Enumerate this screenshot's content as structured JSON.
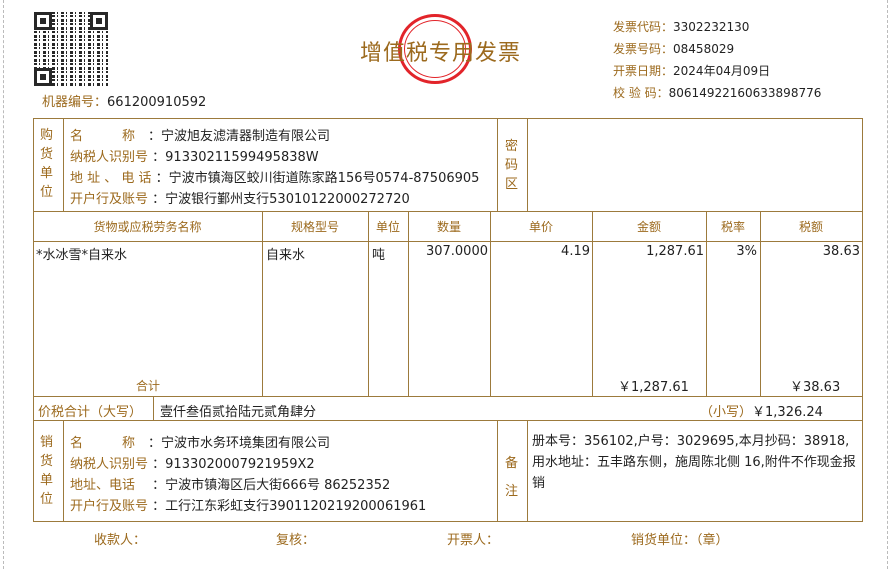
{
  "header": {
    "title": "增值税专用发票",
    "machine_no_label": "机器编号",
    "machine_no": "661200910592",
    "invoice_code_label": "发票代码",
    "invoice_code": "3302232130",
    "invoice_no_label": "发票号码",
    "invoice_no": "08458029",
    "date_label": "开票日期",
    "date": "2024年04月09日",
    "check_code_label": "校 验 码",
    "check_code": "80614922160633898776",
    "seal_color": "#e2242a",
    "accent": "#9c6a1e"
  },
  "buyer": {
    "side_label": "购货单位",
    "name_label": "名　　　称",
    "name": "宁波旭友滤清器制造有限公司",
    "tax_id_label": "纳税人识别号",
    "tax_id": "91330211599495838W",
    "address_label": "地 址 、 电 话",
    "address": "宁波市镇海区蛟川街道陈家路156号0574-87506905",
    "bank_label": "开户行及账号",
    "bank": "宁波银行鄞州支行53010122000272720",
    "cipher_label": "密码区"
  },
  "items": {
    "headers": [
      "货物或应税劳务名称",
      "规格型号",
      "单位",
      "数量",
      "单价",
      "金额",
      "税率",
      "税额"
    ],
    "rows": [
      [
        "*水冰雪*自来水",
        "自来水",
        "吨",
        "307.0000",
        "4.19",
        "1,287.61",
        "3%",
        "38.63"
      ]
    ],
    "subtotal_label": "合计",
    "subtotal_amount": "￥1,287.61",
    "subtotal_tax": "￥38.63"
  },
  "total": {
    "label": "价税合计（大写）",
    "upper": "壹仟叁佰贰拾陆元贰角肆分",
    "lower_label": "（小写）",
    "lower": "￥1,326.24"
  },
  "seller": {
    "side_label": "销货单位",
    "name_label": "名　　　称",
    "name": "宁波市水务环境集团有限公司",
    "tax_id_label": "纳税人识别号",
    "tax_id": "9133020007921959X2",
    "address_label": "地址、电话",
    "address": "宁波市镇海区后大街666号 86252352",
    "bank_label": "开户行及账号",
    "bank": "工行江东彩虹支行3901120219200061961",
    "remark_label": "备注",
    "remark": "册本号：356102,户号：3029695,本月抄码：38918,用水地址：五丰路东侧，施周陈北侧 16,附件不作现金报销"
  },
  "footer": {
    "payee": "收款人：",
    "reviewer": "复核：",
    "drawer": "开票人：",
    "seller_seal": "销货单位：（章）"
  }
}
